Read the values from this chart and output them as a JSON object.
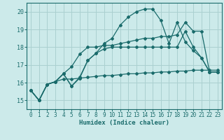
{
  "title": "",
  "xlabel": "Humidex (Indice chaleur)",
  "background_color": "#cceaea",
  "grid_color": "#aad0d0",
  "line_color": "#1a6b6b",
  "xlim": [
    -0.5,
    23.5
  ],
  "ylim": [
    14.5,
    20.5
  ],
  "yticks": [
    15,
    16,
    17,
    18,
    19,
    20
  ],
  "xticks": [
    0,
    1,
    2,
    3,
    4,
    5,
    6,
    7,
    8,
    9,
    10,
    11,
    12,
    13,
    14,
    15,
    16,
    17,
    18,
    19,
    20,
    21,
    22,
    23
  ],
  "series": [
    [
      15.55,
      15.0,
      15.9,
      16.05,
      16.5,
      15.8,
      16.25,
      17.25,
      17.65,
      17.9,
      18.0,
      18.0,
      18.0,
      18.0,
      18.0,
      18.0,
      18.0,
      18.0,
      18.0,
      18.9,
      18.0,
      17.4,
      16.6,
      16.6
    ],
    [
      15.55,
      15.0,
      15.9,
      16.05,
      16.5,
      16.9,
      17.6,
      18.0,
      18.0,
      18.1,
      18.1,
      18.2,
      18.3,
      18.4,
      18.5,
      18.5,
      18.6,
      18.6,
      18.7,
      19.4,
      18.9,
      18.9,
      16.6,
      16.6
    ],
    [
      15.55,
      15.0,
      15.9,
      16.05,
      16.5,
      15.8,
      16.3,
      17.25,
      17.65,
      18.2,
      18.5,
      19.25,
      19.7,
      20.0,
      20.15,
      20.15,
      19.5,
      18.2,
      19.4,
      18.3,
      17.8,
      17.4,
      16.6,
      16.6
    ],
    [
      15.55,
      15.0,
      15.9,
      16.05,
      16.2,
      16.2,
      16.25,
      16.3,
      16.35,
      16.4,
      16.4,
      16.45,
      16.5,
      16.5,
      16.55,
      16.55,
      16.6,
      16.6,
      16.65,
      16.65,
      16.7,
      16.7,
      16.7,
      16.7
    ]
  ]
}
